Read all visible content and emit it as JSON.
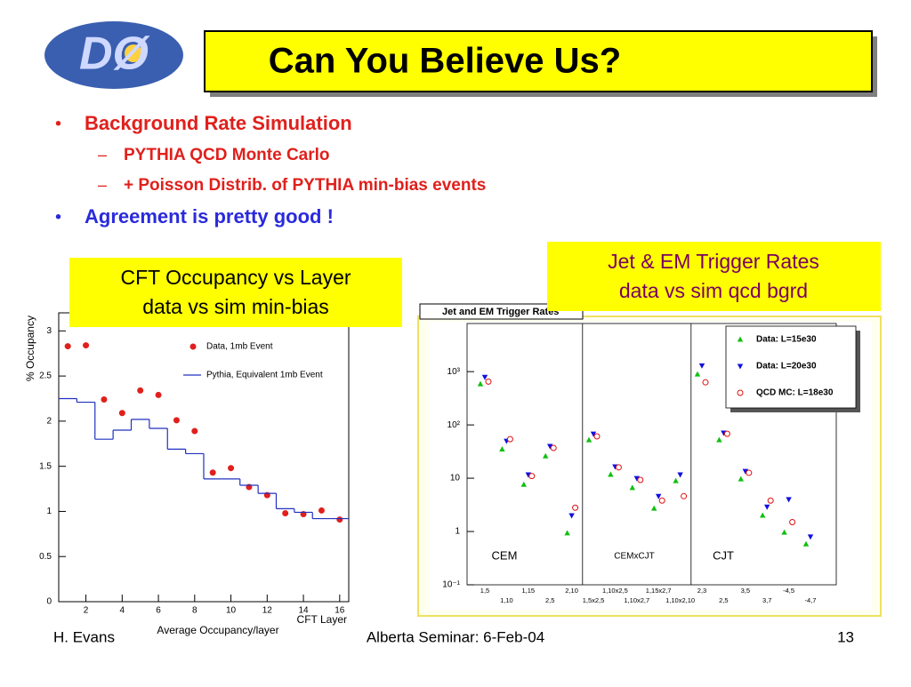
{
  "logo": "DØ",
  "header": {
    "title": "Can You Believe Us?"
  },
  "bullets": [
    {
      "text": "Background Rate Simulation",
      "sub": [
        "PYTHIA QCD Monte Carlo",
        "+ Poisson Distrib. of PYTHIA min-bias events"
      ]
    },
    {
      "text": "Agreement is pretty good !"
    }
  ],
  "callouts": [
    {
      "lines": [
        "CFT Occupancy vs Layer",
        "data vs sim min-bias"
      ]
    },
    {
      "lines": [
        "Jet & EM Trigger Rates",
        "data vs sim qcd bgrd"
      ]
    }
  ],
  "chart_data": [
    {
      "type": "scatter",
      "title": "Average Occupancy/layer",
      "xlabel": "CFT Layer",
      "ylabel": "% Occupancy",
      "x": [
        1,
        2,
        3,
        4,
        5,
        6,
        7,
        8,
        9,
        10,
        11,
        12,
        13,
        14,
        15,
        16
      ],
      "series": [
        {
          "name": "Data, 1mb Event",
          "color": "#e0201c",
          "style": "points",
          "values": [
            2.83,
            2.84,
            2.24,
            2.09,
            2.34,
            2.29,
            2.01,
            1.89,
            1.43,
            1.48,
            1.27,
            1.18,
            0.98,
            0.97,
            1.01,
            0.91
          ]
        },
        {
          "name": "Pythia, Equivalent 1mb Event",
          "color": "#2030c0",
          "style": "step",
          "values": [
            2.25,
            2.21,
            1.8,
            1.9,
            2.02,
            1.92,
            1.69,
            1.64,
            1.36,
            1.36,
            1.29,
            1.2,
            1.03,
            0.99,
            0.92,
            0.92
          ]
        }
      ],
      "xlim": [
        0.5,
        16.5
      ],
      "ylim": [
        0,
        3.2
      ],
      "xticks": [
        2,
        4,
        6,
        8,
        10,
        12,
        14,
        16
      ],
      "yticks": [
        0,
        0.5,
        1,
        1.5,
        2,
        2.5,
        3
      ]
    },
    {
      "type": "scatter",
      "title": "Jet and EM Trigger Rates",
      "log_y": true,
      "categories": [
        "1,5",
        "1,10",
        "1,15",
        "2,5",
        "2,10",
        "1,5x2,5",
        "1,10x2,5",
        "1,10x2,7",
        "1,15x2,7",
        "1,10x2,10",
        "2,3",
        "2,5",
        "3,5",
        "3,7",
        "-4,5",
        "-4,7"
      ],
      "annotations": [
        "CEM",
        "CEMxCJT",
        "CJT"
      ],
      "series": [
        {
          "name": "Data: L=15e30",
          "color": "#10c010",
          "marker": "triangle-up",
          "values": [
            585,
            35,
            7.6,
            26,
            0.93,
            52,
            11.7,
            6.6,
            2.7,
            8.9,
            890,
            52,
            9.6,
            2,
            0.96,
            0.58
          ]
        },
        {
          "name": "Data: L=20e30",
          "color": "#1010e0",
          "marker": "triangle-down",
          "values": [
            790,
            50,
            11.7,
            40,
            2,
            68,
            16.5,
            10,
            4.6,
            11.7,
            1300,
            71,
            13.6,
            2.9,
            4,
            0.8
          ]
        },
        {
          "name": "QCD MC: L=18e30",
          "color": "#e01010",
          "marker": "circle",
          "values": [
            650,
            54,
            11,
            37,
            2.8,
            61,
            16,
            9.3,
            3.8,
            4.6,
            630,
            68,
            12.6,
            3.8,
            1.5,
            null
          ]
        }
      ],
      "ylim": [
        0.1,
        8000
      ],
      "yticks": [
        {
          "value": 0.1,
          "label": "10⁻¹"
        },
        1,
        10,
        {
          "value": 100,
          "label": "10²"
        },
        {
          "value": 1000,
          "label": "10³"
        }
      ]
    }
  ],
  "footer": {
    "left": "H. Evans",
    "center": "Alberta Seminar: 6-Feb-04",
    "page": "13"
  }
}
